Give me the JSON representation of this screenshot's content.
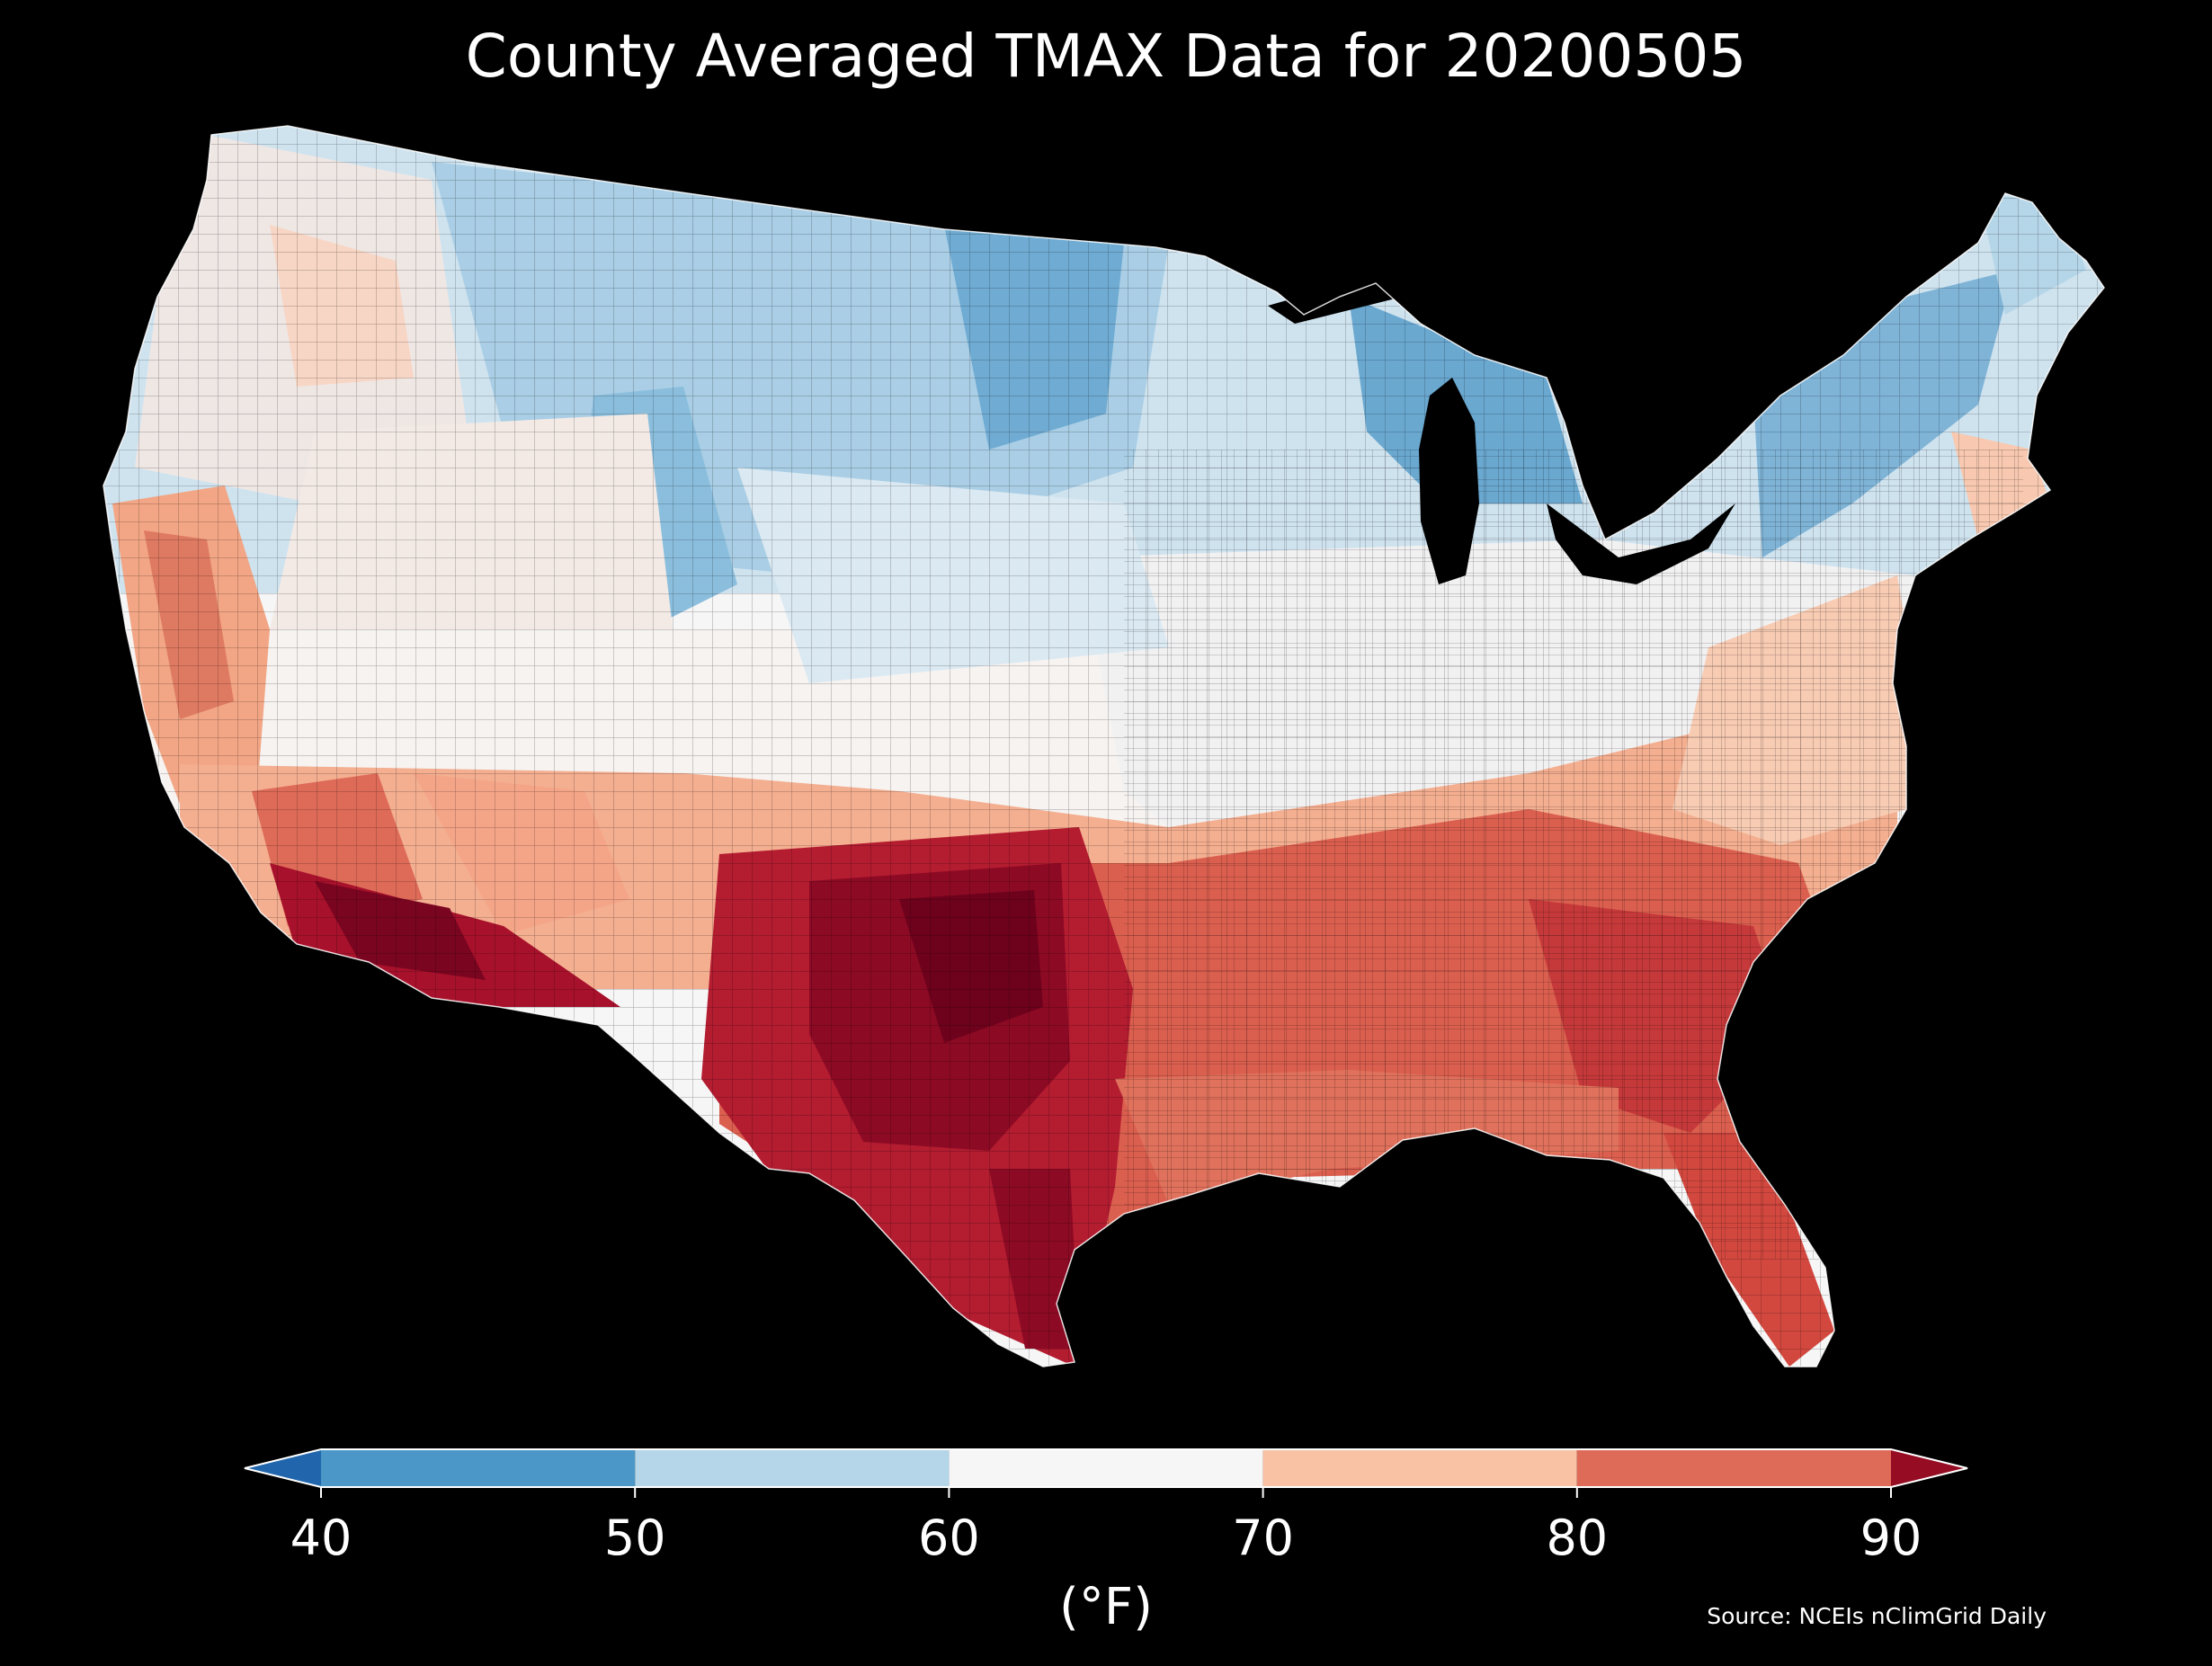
{
  "title": "County Averaged TMAX Data for 20200505",
  "colors": {
    "background": "#000000",
    "text": "#ffffff",
    "outline": "#ffffff"
  },
  "colorbar": {
    "unit": "(°F)",
    "ticks": [
      "40",
      "50",
      "60",
      "70",
      "80",
      "90"
    ],
    "bins": [
      {
        "from": 40,
        "to": 50,
        "color": "#4b97c7"
      },
      {
        "from": 50,
        "to": 60,
        "color": "#b5d6e8"
      },
      {
        "from": 60,
        "to": 70,
        "color": "#f6f6f6"
      },
      {
        "from": 70,
        "to": 80,
        "color": "#f9c2a5"
      },
      {
        "from": 80,
        "to": 90,
        "color": "#de6a58"
      }
    ],
    "extend_low_color": "#2166ac",
    "extend_high_color": "#950c23"
  },
  "legend": {
    "value_range": [
      40,
      90
    ],
    "extend": "both",
    "placement": "bottom"
  },
  "map": {
    "region": "Contiguous United States",
    "unit_of_aggregation": "county",
    "variable": "TMAX",
    "date": "20200505",
    "regional_pattern": [
      {
        "region": "Pacific Northwest coast",
        "approx_value": 65
      },
      {
        "region": "California Central Valley",
        "approx_value": 78
      },
      {
        "region": "Desert Southwest",
        "approx_value": 92
      },
      {
        "region": "Great Basin",
        "approx_value": 66
      },
      {
        "region": "Northern Rockies",
        "approx_value": 55
      },
      {
        "region": "Northern Plains",
        "approx_value": 52
      },
      {
        "region": "Upper Midwest / Great Lakes",
        "approx_value": 50
      },
      {
        "region": "Central Plains",
        "approx_value": 62
      },
      {
        "region": "Texas",
        "approx_value": 91
      },
      {
        "region": "Southeast",
        "approx_value": 84
      },
      {
        "region": "Florida",
        "approx_value": 85
      },
      {
        "region": "Mid-Atlantic",
        "approx_value": 68
      },
      {
        "region": "New England",
        "approx_value": 54
      }
    ]
  },
  "source": "Source: NCEIs nClimGrid Daily"
}
